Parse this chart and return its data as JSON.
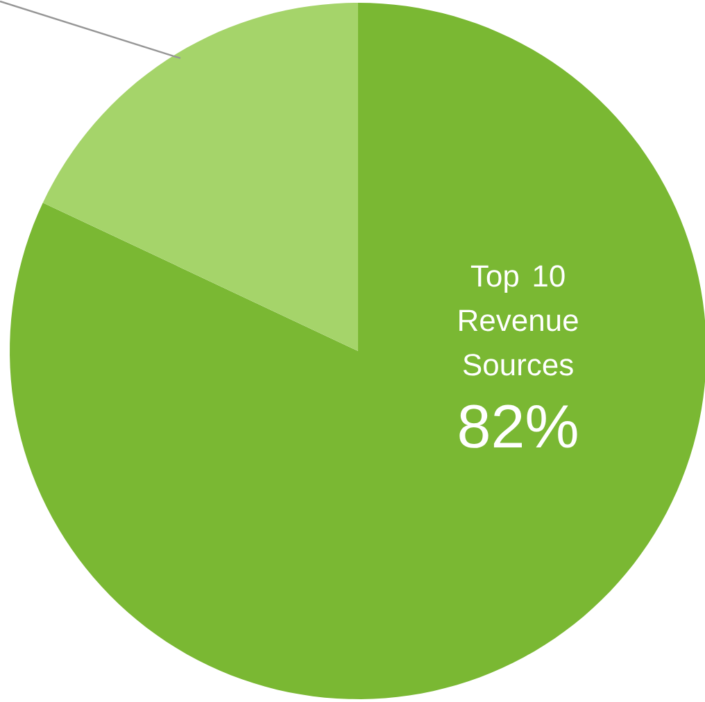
{
  "chart_data": {
    "type": "pie",
    "categories": [
      "Top 10 Revenue Sources",
      null
    ],
    "values": [
      82,
      18
    ],
    "colors": [
      "#7ab833",
      "#a5d46a"
    ],
    "value_labels": [
      "82%",
      null
    ]
  }
}
